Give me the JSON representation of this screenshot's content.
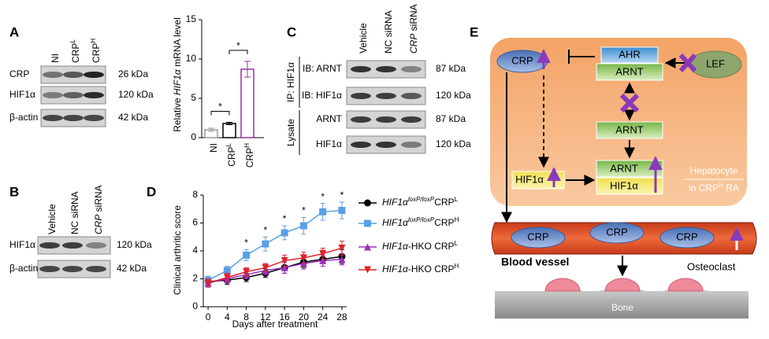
{
  "panel_labels": [
    "A",
    "B",
    "C",
    "D",
    "E"
  ],
  "panel_a": {
    "lanes": [
      "NI",
      [
        {
          "text": "CRP"
        },
        {
          "text": "L",
          "sup": true
        }
      ],
      [
        {
          "text": "CRP"
        },
        {
          "text": "H",
          "sup": true
        }
      ]
    ],
    "rows": [
      {
        "label": "CRP",
        "kda": "26 kDa"
      },
      {
        "label": "HIF1α",
        "kda": "120 kDa"
      },
      {
        "label": "β-actin",
        "kda": "42 kDa"
      }
    ]
  },
  "panel_b": {
    "lanes": [
      "Vehicle",
      "NC siRNA",
      [
        {
          "text": "CRP",
          "italic": true
        },
        {
          "text": " siRNA"
        }
      ]
    ],
    "rows": [
      {
        "label": "HIF1α",
        "kda": "120 kDa"
      },
      {
        "label": "β-actin",
        "kda": "42 kDa"
      }
    ]
  },
  "panel_c": {
    "lanes": [
      "Vehicle",
      "NC siRNA",
      [
        {
          "text": "CRP",
          "italic": true
        },
        {
          "text": " siRNA"
        }
      ]
    ],
    "groups": [
      {
        "label": "IP: HIF1α",
        "rows": [
          {
            "label": "IB: ARNT",
            "kda": "87 kDa"
          },
          {
            "label": "IB: HIF1α",
            "kda": "120 kDa"
          }
        ]
      },
      {
        "label": "Lysate",
        "rows": [
          {
            "label": "ARNT",
            "kda": "87 kDa"
          },
          {
            "label": "HIF1α",
            "kda": "120 kDa"
          }
        ]
      }
    ]
  },
  "chart_data": [
    {
      "type": "bar",
      "ylabel": [
        {
          "text": "Relative "
        },
        {
          "text": "HIF1α",
          "italic": true
        },
        {
          "text": " mRNA level"
        }
      ],
      "categories": [
        "NI",
        [
          {
            "text": "CRP"
          },
          {
            "text": "L",
            "sup": true
          }
        ],
        [
          {
            "text": "CRP"
          },
          {
            "text": "H",
            "sup": true
          }
        ]
      ],
      "values": [
        1.0,
        1.8,
        8.7
      ],
      "errors": [
        0.2,
        0.15,
        1.0
      ],
      "colors": [
        "#9a9a9a",
        "#000000",
        "#9b30a6"
      ],
      "ylim": [
        0,
        15
      ],
      "yticks": [
        0,
        5,
        10,
        15
      ],
      "significance": [
        {
          "from": 0,
          "to": 1,
          "label": "*"
        },
        {
          "from": 1,
          "to": 2,
          "label": "*"
        }
      ]
    },
    {
      "type": "line",
      "ylabel": "Clinical arthritic score",
      "xlabel": "Days after treatment",
      "x": [
        0,
        4,
        8,
        12,
        16,
        20,
        24,
        28
      ],
      "xlim": [
        -1,
        29
      ],
      "xticks": [
        0,
        4,
        8,
        12,
        16,
        20,
        24,
        28
      ],
      "ylim": [
        0,
        8
      ],
      "yticks": [
        0,
        2,
        4,
        6,
        8
      ],
      "series": [
        {
          "name": [
            {
              "text": "HIF1α",
              "italic": true
            },
            {
              "text": "loxP/loxP",
              "italic": true,
              "sup": true
            },
            {
              "text": "CRP"
            },
            {
              "text": "L",
              "sup": true
            }
          ],
          "color": "#000000",
          "marker": "circle",
          "values": [
            1.8,
            1.9,
            2.1,
            2.4,
            2.8,
            3.2,
            3.4,
            3.6
          ],
          "errors": [
            0.3,
            0.3,
            0.3,
            0.3,
            0.4,
            0.4,
            0.5,
            0.5
          ]
        },
        {
          "name": [
            {
              "text": "HIF1α",
              "italic": true
            },
            {
              "text": "loxP/loxP",
              "italic": true,
              "sup": true
            },
            {
              "text": "CRP"
            },
            {
              "text": "H",
              "sup": true
            }
          ],
          "color": "#5aa0e6",
          "marker": "square",
          "values": [
            1.9,
            2.6,
            3.7,
            4.5,
            5.3,
            5.8,
            6.8,
            6.9
          ],
          "errors": [
            0.3,
            0.3,
            0.4,
            0.5,
            0.5,
            0.6,
            0.6,
            0.6
          ]
        },
        {
          "name": [
            {
              "text": "HIF1α",
              "italic": true
            },
            {
              "text": "-HKO CRP"
            },
            {
              "text": "L",
              "sup": true
            }
          ],
          "color": "#9b30c0",
          "marker": "triangle-up",
          "values": [
            1.7,
            2.0,
            2.3,
            2.6,
            2.8,
            3.1,
            3.3,
            3.4
          ],
          "errors": [
            0.3,
            0.3,
            0.3,
            0.3,
            0.4,
            0.4,
            0.4,
            0.4
          ]
        },
        {
          "name": [
            {
              "text": "HIF1α",
              "italic": true
            },
            {
              "text": "-HKO CRP"
            },
            {
              "text": "H",
              "sup": true
            }
          ],
          "color": "#e0202a",
          "marker": "triangle-down",
          "values": [
            1.7,
            2.1,
            2.5,
            2.8,
            3.3,
            3.5,
            3.8,
            4.2
          ],
          "errors": [
            0.3,
            0.3,
            0.3,
            0.3,
            0.4,
            0.4,
            0.4,
            0.5
          ]
        }
      ],
      "significance": {
        "x": [
          8,
          12,
          16,
          20,
          24,
          28
        ],
        "label": "*"
      }
    }
  ],
  "panel_e": {
    "crp": "CRP",
    "ahr": "AHR",
    "arnt_top": "ARNT",
    "lef": "LEF",
    "arnt_mid": "ARNT",
    "hif1a": "HIF1α",
    "arnt_complex": "ARNT",
    "hif1a_complex": "HIF1α",
    "hepatocyte": {
      "line1": "Hepatocyte",
      "line2": [
        {
          "text": "in CRP"
        },
        {
          "text": "H",
          "sup": true
        },
        {
          "text": " RA"
        }
      ]
    },
    "vessel_crp": [
      "CRP",
      "CRP",
      "CRP"
    ],
    "blood_vessel": "Blood vessel",
    "osteoclast": "Osteoclast",
    "bone": "Bone"
  }
}
